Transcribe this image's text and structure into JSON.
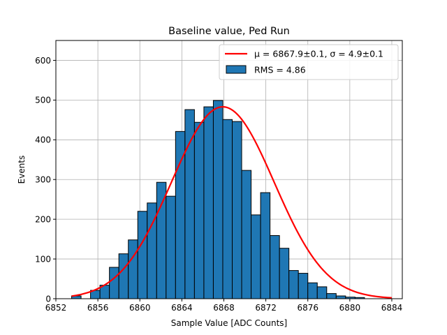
{
  "chart_data": {
    "type": "bar",
    "title": "Baseline value, Ped Run",
    "xlabel": "Sample Value [ADC Counts]",
    "ylabel": "Events",
    "xlim": [
      6852,
      6885
    ],
    "ylim": [
      0,
      650
    ],
    "xticks": [
      6852,
      6856,
      6860,
      6864,
      6868,
      6872,
      6876,
      6880,
      6884
    ],
    "yticks": [
      0,
      100,
      200,
      300,
      400,
      500,
      600
    ],
    "grid": true,
    "legend_position": "top-right",
    "colors": {
      "bar": "#1f77b4",
      "bar_edge": "#000000",
      "fit": "#ff0000",
      "grid": "#b0b0b0"
    },
    "histogram": {
      "name": "RMS = 4.86",
      "bin_start": 6853.5,
      "bin_width": 0.9,
      "counts": [
        7,
        0,
        21,
        34,
        79,
        113,
        148,
        220,
        241,
        293,
        258,
        421,
        476,
        444,
        483,
        499,
        451,
        446,
        323,
        211,
        267,
        159,
        127,
        71,
        64,
        40,
        30,
        13,
        7,
        4,
        3
      ]
    },
    "fit": {
      "name_prefix": "μ = 6867.9±0.1, σ = 4.9±0.1",
      "mu": 6867.9,
      "sigma": 4.9,
      "amplitude": 483,
      "x_range": [
        6853.5,
        6884
      ]
    },
    "legend": {
      "fit_label": "μ = 6867.9±0.1, σ = 4.9±0.1",
      "hist_label": "RMS = 4.86"
    }
  }
}
